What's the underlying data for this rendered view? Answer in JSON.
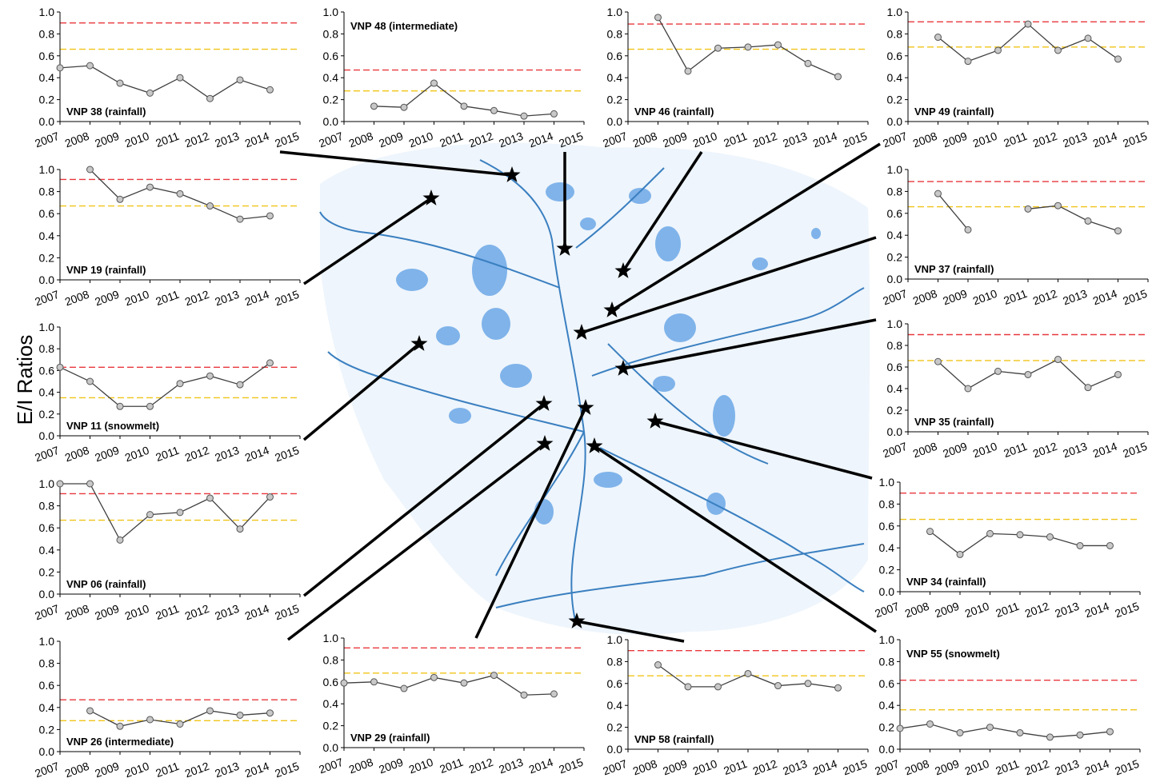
{
  "y_label": "E/I Ratios",
  "chart_data": [
    {
      "type": "line",
      "title": "VNP 38 (rainfall)",
      "categories": [
        "2007",
        "2008",
        "2009",
        "2010",
        "2011",
        "2012",
        "2013",
        "2014",
        "2015"
      ],
      "values": [
        0.49,
        0.51,
        0.35,
        0.26,
        0.4,
        0.21,
        0.38,
        0.29,
        null
      ],
      "color": "#404040",
      "ylim": [
        0,
        1
      ],
      "yticks": [
        {
          "value": 0,
          "label": "0.0"
        },
        0.2,
        0.4,
        0.6,
        0.8,
        {
          "value": 1,
          "label": "1.0"
        }
      ],
      "reference_lines": [
        {
          "value": 0.9,
          "color": "#e8383d"
        },
        {
          "value": 0.66,
          "color": "#f0c419"
        }
      ]
    },
    {
      "type": "line",
      "title": "VNP 48 (intermediate)",
      "categories": [
        "2007",
        "2008",
        "2009",
        "2010",
        "2011",
        "2012",
        "2013",
        "2014",
        "2015"
      ],
      "values": [
        null,
        0.14,
        0.13,
        0.35,
        0.14,
        0.1,
        0.05,
        0.07,
        null
      ],
      "color": "#404040",
      "ylim": [
        0,
        1
      ],
      "yticks": [
        {
          "value": 0,
          "label": "0.0"
        },
        0.2,
        0.4,
        0.6,
        0.8,
        {
          "value": 1,
          "label": "1.0"
        }
      ],
      "reference_lines": [
        {
          "value": 0.47,
          "color": "#e8383d"
        },
        {
          "value": 0.28,
          "color": "#f0c419"
        }
      ]
    },
    {
      "type": "line",
      "title": "VNP 46 (rainfall)",
      "categories": [
        "2007",
        "2008",
        "2009",
        "2010",
        "2011",
        "2012",
        "2013",
        "2014",
        "2015"
      ],
      "values": [
        null,
        0.95,
        0.46,
        0.67,
        0.68,
        0.7,
        0.53,
        0.41,
        null
      ],
      "color": "#404040",
      "ylim": [
        0,
        1
      ],
      "yticks": [
        {
          "value": 0,
          "label": "0.0"
        },
        0.2,
        0.4,
        0.6,
        0.8,
        {
          "value": 1,
          "label": "1.0"
        }
      ],
      "reference_lines": [
        {
          "value": 0.89,
          "color": "#e8383d"
        },
        {
          "value": 0.66,
          "color": "#f0c419"
        }
      ]
    },
    {
      "type": "line",
      "title": "VNP 49 (rainfall)",
      "categories": [
        "2007",
        "2008",
        "2009",
        "2010",
        "2011",
        "2012",
        "2013",
        "2014",
        "2015"
      ],
      "values": [
        null,
        0.77,
        0.55,
        0.65,
        0.89,
        0.65,
        0.76,
        0.57,
        null
      ],
      "color": "#404040",
      "ylim": [
        0,
        1
      ],
      "yticks": [
        {
          "value": 0,
          "label": "0.0"
        },
        0.2,
        0.4,
        0.6,
        0.8,
        {
          "value": 1,
          "label": "1.0"
        }
      ],
      "reference_lines": [
        {
          "value": 0.91,
          "color": "#e8383d"
        },
        {
          "value": 0.68,
          "color": "#f0c419"
        }
      ]
    },
    {
      "type": "line",
      "title": "VNP 19 (rainfall)",
      "categories": [
        "2007",
        "2008",
        "2009",
        "2010",
        "2011",
        "2012",
        "2013",
        "2014",
        "2015"
      ],
      "values": [
        null,
        1.0,
        0.73,
        0.84,
        0.78,
        0.67,
        0.55,
        0.58,
        null
      ],
      "color": "#404040",
      "ylim": [
        0,
        1
      ],
      "yticks": [
        {
          "value": 0,
          "label": "0.0"
        },
        0.2,
        0.4,
        0.6,
        0.8,
        {
          "value": 1,
          "label": "1.0"
        }
      ],
      "reference_lines": [
        {
          "value": 0.91,
          "color": "#e8383d"
        },
        {
          "value": 0.67,
          "color": "#f0c419"
        }
      ]
    },
    {
      "type": "line",
      "title": "VNP 37 (rainfall)",
      "categories": [
        "2007",
        "2008",
        "2009",
        "2010",
        "2011",
        "2012",
        "2013",
        "2014",
        "2015"
      ],
      "values": [
        null,
        0.78,
        0.45,
        null,
        0.64,
        0.67,
        0.53,
        0.44,
        null
      ],
      "color": "#404040",
      "ylim": [
        0,
        1
      ],
      "yticks": [
        {
          "value": 0,
          "label": "0.0"
        },
        0.2,
        0.4,
        0.6,
        0.8,
        {
          "value": 1,
          "label": "1.0"
        }
      ],
      "reference_lines": [
        {
          "value": 0.89,
          "color": "#e8383d"
        },
        {
          "value": 0.66,
          "color": "#f0c419"
        }
      ]
    },
    {
      "type": "line",
      "title": "VNP 11 (snowmelt)",
      "categories": [
        "2007",
        "2008",
        "2009",
        "2010",
        "2011",
        "2012",
        "2013",
        "2014",
        "2015"
      ],
      "values": [
        0.63,
        0.5,
        0.27,
        0.27,
        0.48,
        0.55,
        0.47,
        0.67,
        null
      ],
      "color": "#404040",
      "ylim": [
        0,
        1
      ],
      "yticks": [
        {
          "value": 0,
          "label": "0.0"
        },
        0.2,
        0.4,
        0.6,
        0.8,
        {
          "value": 1,
          "label": "1.0"
        }
      ],
      "reference_lines": [
        {
          "value": 0.63,
          "color": "#e8383d"
        },
        {
          "value": 0.35,
          "color": "#f0c419"
        }
      ]
    },
    {
      "type": "line",
      "title": "VNP 35 (rainfall)",
      "categories": [
        "2007",
        "2008",
        "2009",
        "2010",
        "2011",
        "2012",
        "2013",
        "2014",
        "2015"
      ],
      "values": [
        null,
        0.65,
        0.4,
        0.56,
        0.53,
        0.67,
        0.41,
        0.53,
        null
      ],
      "color": "#404040",
      "ylim": [
        0,
        1
      ],
      "yticks": [
        {
          "value": 0,
          "label": "0.0"
        },
        0.2,
        0.4,
        0.6,
        0.8,
        {
          "value": 1,
          "label": "1.0"
        }
      ],
      "reference_lines": [
        {
          "value": 0.9,
          "color": "#e8383d"
        },
        {
          "value": 0.66,
          "color": "#f0c419"
        }
      ]
    },
    {
      "type": "line",
      "title": "VNP 06 (rainfall)",
      "categories": [
        "2007",
        "2008",
        "2009",
        "2010",
        "2011",
        "2012",
        "2013",
        "2014",
        "2015"
      ],
      "values": [
        1.0,
        1.0,
        0.49,
        0.72,
        0.74,
        0.87,
        0.59,
        0.88,
        null
      ],
      "color": "#404040",
      "ylim": [
        0,
        1
      ],
      "yticks": [
        {
          "value": 0,
          "label": "0.0"
        },
        0.2,
        0.4,
        0.6,
        0.8,
        {
          "value": 1,
          "label": "1.0"
        }
      ],
      "reference_lines": [
        {
          "value": 0.91,
          "color": "#e8383d"
        },
        {
          "value": 0.67,
          "color": "#f0c419"
        }
      ]
    },
    {
      "type": "line",
      "title": "VNP 34 (rainfall)",
      "categories": [
        "2007",
        "2008",
        "2009",
        "2010",
        "2011",
        "2012",
        "2013",
        "2014",
        "2015"
      ],
      "values": [
        null,
        0.55,
        0.34,
        0.53,
        0.52,
        0.5,
        0.42,
        0.42,
        null
      ],
      "color": "#404040",
      "ylim": [
        0,
        1
      ],
      "yticks": [
        {
          "value": 0,
          "label": "0.0"
        },
        0.2,
        0.4,
        0.6,
        0.8,
        {
          "value": 1,
          "label": "1.0"
        }
      ],
      "reference_lines": [
        {
          "value": 0.9,
          "color": "#e8383d"
        },
        {
          "value": 0.66,
          "color": "#f0c419"
        }
      ]
    },
    {
      "type": "line",
      "title": "VNP 26 (intermediate)",
      "categories": [
        "2007",
        "2008",
        "2009",
        "2010",
        "2011",
        "2012",
        "2013",
        "2014",
        "2015"
      ],
      "values": [
        null,
        0.37,
        0.23,
        0.29,
        0.25,
        0.37,
        0.33,
        0.35,
        null
      ],
      "color": "#404040",
      "ylim": [
        0,
        1
      ],
      "yticks": [
        {
          "value": 0,
          "label": "0.0"
        },
        0.2,
        0.4,
        0.6,
        0.8,
        {
          "value": 1,
          "label": "1.0"
        }
      ],
      "reference_lines": [
        {
          "value": 0.47,
          "color": "#e8383d"
        },
        {
          "value": 0.28,
          "color": "#f0c419"
        }
      ]
    },
    {
      "type": "line",
      "title": "VNP 29 (rainfall)",
      "categories": [
        "2007",
        "2008",
        "2009",
        "2010",
        "2011",
        "2012",
        "2013",
        "2014",
        "2015"
      ],
      "values": [
        0.59,
        0.6,
        0.54,
        0.64,
        0.59,
        0.66,
        0.48,
        0.49,
        null
      ],
      "color": "#404040",
      "ylim": [
        0,
        1
      ],
      "yticks": [
        {
          "value": 0,
          "label": "0.0"
        },
        0.2,
        0.4,
        0.6,
        0.8,
        {
          "value": 1,
          "label": "1.0"
        }
      ],
      "reference_lines": [
        {
          "value": 0.91,
          "color": "#e8383d"
        },
        {
          "value": 0.68,
          "color": "#f0c419"
        }
      ]
    },
    {
      "type": "line",
      "title": "VNP 58 (rainfall)",
      "categories": [
        "2007",
        "2008",
        "2009",
        "2010",
        "2011",
        "2012",
        "2013",
        "2014",
        "2015"
      ],
      "values": [
        null,
        0.77,
        0.57,
        0.57,
        0.69,
        0.58,
        0.6,
        0.56,
        null
      ],
      "color": "#404040",
      "ylim": [
        0,
        1
      ],
      "yticks": [
        {
          "value": 0,
          "label": "0.0"
        },
        0.2,
        0.4,
        0.6,
        0.8,
        {
          "value": 1,
          "label": "1.0"
        }
      ],
      "reference_lines": [
        {
          "value": 0.9,
          "color": "#e8383d"
        },
        {
          "value": 0.67,
          "color": "#f0c419"
        }
      ]
    },
    {
      "type": "line",
      "title": "VNP 55 (snowmelt)",
      "categories": [
        "2007",
        "2008",
        "2009",
        "2010",
        "2011",
        "2012",
        "2013",
        "2014",
        "2015"
      ],
      "values": [
        0.19,
        0.23,
        0.15,
        0.2,
        0.15,
        0.11,
        0.13,
        0.16,
        null
      ],
      "color": "#404040",
      "ylim": [
        0,
        1
      ],
      "yticks": [
        {
          "value": 0,
          "label": "0.0"
        },
        0.2,
        0.4,
        0.6,
        0.8,
        {
          "value": 1,
          "label": "1.0"
        }
      ],
      "reference_lines": [
        {
          "value": 0.63,
          "color": "#e8383d"
        },
        {
          "value": 0.36,
          "color": "#f0c419"
        }
      ]
    }
  ]
}
